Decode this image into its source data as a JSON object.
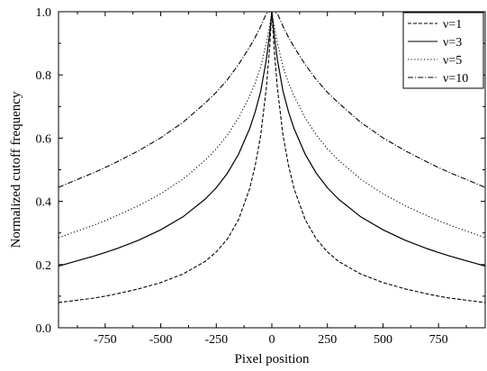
{
  "chart_data": {
    "type": "line",
    "title": "",
    "xlabel": "Pixel position",
    "ylabel": "Normalized cutoff frequency",
    "xlim": [
      -960,
      960
    ],
    "ylim": [
      0.0,
      1.0
    ],
    "x_ticks": [
      -750,
      -500,
      -250,
      0,
      250,
      500,
      750
    ],
    "y_ticks": [
      0.0,
      0.2,
      0.4,
      0.6,
      0.8,
      1.0
    ],
    "x_tick_labels": [
      "-750",
      "-500",
      "-250",
      "0",
      "250",
      "500",
      "750"
    ],
    "y_tick_labels": [
      "0.0",
      "0.2",
      "0.4",
      "0.6",
      "0.8",
      "1.0"
    ],
    "grid": false,
    "legend_position": "top-right",
    "x": [
      -960,
      -900,
      -800,
      -750,
      -700,
      -600,
      -500,
      -400,
      -300,
      -250,
      -200,
      -150,
      -100,
      -75,
      -50,
      -25,
      -10,
      0,
      10,
      25,
      50,
      75,
      100,
      150,
      200,
      250,
      300,
      400,
      500,
      600,
      700,
      750,
      800,
      900,
      960
    ],
    "series": [
      {
        "name": "ν=1",
        "line_style": "dashed",
        "values": [
          0.08,
          0.085,
          0.094,
          0.1,
          0.107,
          0.123,
          0.143,
          0.17,
          0.21,
          0.24,
          0.281,
          0.342,
          0.44,
          0.513,
          0.61,
          0.758,
          0.885,
          1.0,
          0.885,
          0.758,
          0.61,
          0.513,
          0.44,
          0.342,
          0.281,
          0.24,
          0.21,
          0.17,
          0.143,
          0.123,
          0.107,
          0.1,
          0.094,
          0.085,
          0.08
        ]
      },
      {
        "name": "ν=3",
        "line_style": "solid",
        "values": [
          0.195,
          0.207,
          0.227,
          0.238,
          0.25,
          0.277,
          0.31,
          0.351,
          0.407,
          0.443,
          0.489,
          0.549,
          0.63,
          0.683,
          0.749,
          0.848,
          0.93,
          1.0,
          0.93,
          0.848,
          0.749,
          0.683,
          0.63,
          0.549,
          0.489,
          0.443,
          0.407,
          0.351,
          0.31,
          0.277,
          0.25,
          0.238,
          0.227,
          0.207,
          0.195
        ]
      },
      {
        "name": "ν=5",
        "line_style": "dotted",
        "values": [
          0.285,
          0.3,
          0.325,
          0.339,
          0.354,
          0.386,
          0.424,
          0.47,
          0.53,
          0.566,
          0.61,
          0.664,
          0.733,
          0.775,
          0.826,
          0.9,
          0.955,
          1.0,
          0.955,
          0.9,
          0.826,
          0.775,
          0.733,
          0.664,
          0.61,
          0.566,
          0.53,
          0.47,
          0.424,
          0.386,
          0.354,
          0.339,
          0.325,
          0.3,
          0.285
        ]
      },
      {
        "name": "ν=10",
        "line_style": "dash-dot",
        "values": [
          0.444,
          0.462,
          0.491,
          0.507,
          0.524,
          0.56,
          0.601,
          0.65,
          0.711,
          0.745,
          0.785,
          0.833,
          0.888,
          0.919,
          0.954,
          0.994,
          1.0,
          1.0,
          1.0,
          0.994,
          0.954,
          0.919,
          0.888,
          0.833,
          0.785,
          0.745,
          0.711,
          0.65,
          0.601,
          0.56,
          0.524,
          0.507,
          0.491,
          0.462,
          0.444
        ]
      }
    ]
  }
}
